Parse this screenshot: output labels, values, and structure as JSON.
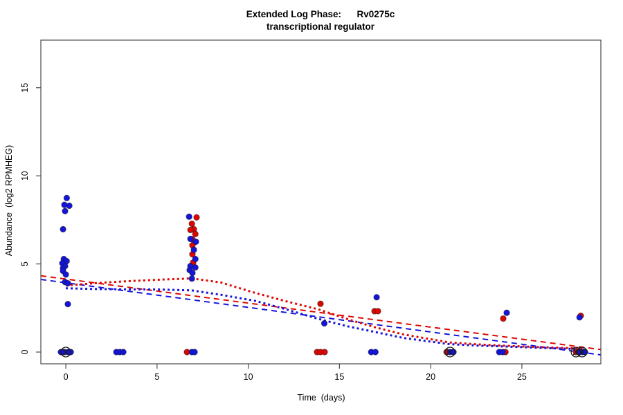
{
  "chart_data": {
    "type": "scatter",
    "title_line1": "Extended Log Phase:      Rv0275c",
    "title_line2": "transcriptional regulator",
    "xlabel": "Time  (days)",
    "ylabel": "Abundance  (log2 RPMHEG)",
    "xlim": [
      -1.37,
      29.33
    ],
    "ylim": [
      -0.667,
      17.7
    ],
    "xticks": [
      0,
      5,
      10,
      15,
      20,
      25
    ],
    "yticks": [
      0,
      5,
      10,
      15
    ],
    "grid": false,
    "legend": "none",
    "colors": {
      "red": "#de0600",
      "blue": "#1414dc",
      "point_edge": "#1a1a1a",
      "frame": "#4a4a4a",
      "marker_black": "#1a1a1a"
    },
    "series": [
      {
        "name": "red-points",
        "color_key": "red",
        "points": [
          [
            7.17,
            7.64
          ],
          [
            6.91,
            7.28
          ],
          [
            7.02,
            6.97
          ],
          [
            6.83,
            6.93
          ],
          [
            7.1,
            6.7
          ],
          [
            6.94,
            6.4
          ],
          [
            6.94,
            6.06
          ],
          [
            6.94,
            5.55
          ],
          [
            6.98,
            5.08
          ],
          [
            13.96,
            2.74
          ],
          [
            16.92,
            2.32
          ],
          [
            17.11,
            2.32
          ],
          [
            23.98,
            1.9
          ],
          [
            28.23,
            2.06
          ],
          [
            6.64,
            0
          ],
          [
            13.77,
            0
          ],
          [
            13.96,
            0
          ],
          [
            14.19,
            0
          ],
          [
            20.87,
            0
          ],
          [
            24.1,
            0
          ],
          [
            27.97,
            0
          ]
        ]
      },
      {
        "name": "blue-points",
        "color_key": "blue",
        "points": [
          [
            0.05,
            8.74
          ],
          [
            -0.08,
            8.35
          ],
          [
            0.19,
            8.3
          ],
          [
            -0.04,
            8.0
          ],
          [
            -0.15,
            6.97
          ],
          [
            -0.11,
            5.28
          ],
          [
            0.04,
            5.16
          ],
          [
            -0.19,
            5.04
          ],
          [
            -0.04,
            4.88
          ],
          [
            -0.15,
            4.76
          ],
          [
            -0.15,
            4.6
          ],
          [
            0.0,
            4.4
          ],
          [
            -0.04,
            3.97
          ],
          [
            0.11,
            3.9
          ],
          [
            0.11,
            2.72
          ],
          [
            6.76,
            7.68
          ],
          [
            6.83,
            6.42
          ],
          [
            7.13,
            6.26
          ],
          [
            7.02,
            5.8
          ],
          [
            7.1,
            5.28
          ],
          [
            6.83,
            4.88
          ],
          [
            7.1,
            4.8
          ],
          [
            6.79,
            4.65
          ],
          [
            6.94,
            4.49
          ],
          [
            6.91,
            4.17
          ],
          [
            14.17,
            1.63
          ],
          [
            17.04,
            3.11
          ],
          [
            24.17,
            2.23
          ],
          [
            28.16,
            1.97
          ],
          [
            -0.27,
            0
          ],
          [
            -0.08,
            0
          ],
          [
            0.12,
            0
          ],
          [
            0.27,
            0
          ],
          [
            2.77,
            0
          ],
          [
            2.96,
            0
          ],
          [
            3.15,
            0
          ],
          [
            6.91,
            0
          ],
          [
            7.06,
            0
          ],
          [
            16.74,
            0
          ],
          [
            16.97,
            0
          ],
          [
            21.06,
            0
          ],
          [
            21.25,
            0
          ],
          [
            23.76,
            0
          ],
          [
            23.95,
            0
          ],
          [
            28.12,
            0
          ],
          [
            28.31,
            0
          ],
          [
            28.46,
            0
          ]
        ]
      }
    ],
    "circle_x_markers": [
      [
        0.0,
        0
      ],
      [
        21.06,
        0
      ],
      [
        27.97,
        0
      ],
      [
        28.3,
        0
      ]
    ],
    "lines": [
      {
        "name": "red-dashed-trend",
        "color_key": "red",
        "style": "dashed",
        "points": [
          [
            -1.37,
            4.33
          ],
          [
            29.33,
            0.14
          ]
        ]
      },
      {
        "name": "blue-dashed-trend",
        "color_key": "blue",
        "style": "dashed",
        "points": [
          [
            -1.37,
            4.12
          ],
          [
            29.33,
            -0.16
          ]
        ]
      },
      {
        "name": "red-dotted-smooth",
        "color_key": "red",
        "style": "dotted",
        "points": [
          [
            0,
            3.77
          ],
          [
            1.5,
            3.9
          ],
          [
            3,
            4.0
          ],
          [
            5,
            4.1
          ],
          [
            6.9,
            4.18
          ],
          [
            8.5,
            3.95
          ],
          [
            10.4,
            3.35
          ],
          [
            12,
            2.9
          ],
          [
            13.85,
            2.42
          ],
          [
            15.5,
            1.85
          ],
          [
            16.9,
            1.42
          ],
          [
            18.5,
            1.0
          ],
          [
            21,
            0.55
          ],
          [
            22.5,
            0.44
          ],
          [
            24,
            0.36
          ],
          [
            26,
            0.28
          ],
          [
            28.4,
            0.2
          ]
        ]
      },
      {
        "name": "blue-dotted-smooth",
        "color_key": "blue",
        "style": "dotted",
        "points": [
          [
            0,
            3.62
          ],
          [
            1.5,
            3.58
          ],
          [
            3,
            3.56
          ],
          [
            5,
            3.55
          ],
          [
            6.9,
            3.5
          ],
          [
            8.5,
            3.25
          ],
          [
            10.4,
            2.9
          ],
          [
            12,
            2.45
          ],
          [
            13.85,
            1.88
          ],
          [
            15.5,
            1.45
          ],
          [
            16.9,
            1.15
          ],
          [
            18.5,
            0.8
          ],
          [
            21,
            0.45
          ],
          [
            22.5,
            0.37
          ],
          [
            24,
            0.32
          ],
          [
            26,
            0.24
          ],
          [
            28.4,
            0.16
          ]
        ]
      }
    ]
  }
}
